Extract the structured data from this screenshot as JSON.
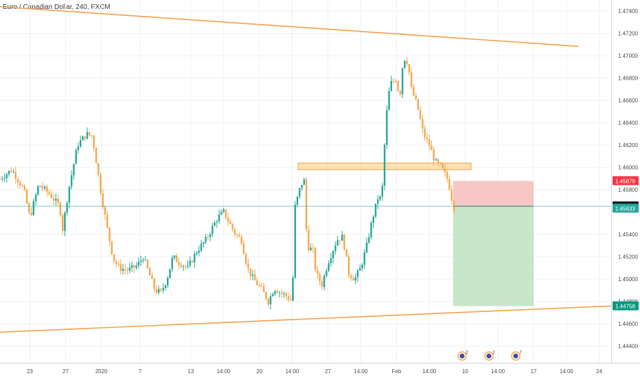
{
  "chart_data": {
    "type": "candlestick",
    "title": "Euro / Canadian Dollar, 240, FXCM",
    "ylim": [
      1.4425,
      1.475
    ],
    "y_ticks": [
      "1.47400",
      "1.47200",
      "1.47000",
      "1.46800",
      "1.46600",
      "1.46400",
      "1.46200",
      "1.46000",
      "1.45800",
      "1.45400",
      "1.45200",
      "1.45000",
      "1.44800",
      "1.44600",
      "1.44400"
    ],
    "x_ticks": [
      "23",
      "27",
      "2020",
      "7",
      "13",
      "14:00",
      "20",
      "14:00",
      "27",
      "14:00",
      "Feb",
      "14:00",
      "10",
      "14:00",
      "17",
      "14:00",
      "24"
    ],
    "x_domain": [
      0,
      205
    ],
    "x_tick_positions": [
      10,
      22,
      34,
      47,
      64,
      75,
      87,
      98,
      110,
      121,
      133,
      144,
      156,
      167,
      179,
      190,
      201
    ],
    "price_tags": [
      {
        "label": "1.45879",
        "value": 1.45879,
        "color": "#f23645"
      },
      {
        "label": "1.45653",
        "value": 1.45653,
        "color": "#131722"
      },
      {
        "label": "1.45633",
        "value": 1.45633,
        "color": "#26a69a"
      },
      {
        "label": "1.44758",
        "value": 1.44758,
        "color": "#089981"
      }
    ],
    "current_price_line": 1.45653,
    "trendlines": [
      {
        "x1": 0,
        "y1": 1.4744,
        "x2": 194,
        "y2": 1.47085,
        "color": "#f2a04a"
      },
      {
        "x1": 0,
        "y1": 1.44525,
        "x2": 205,
        "y2": 1.4476,
        "color": "#f2a04a"
      }
    ],
    "zones": [
      {
        "x1": 100,
        "x2": 158,
        "y1": 1.4598,
        "y2": 1.4604,
        "fill": "#f9d79a",
        "stroke": "#f2a04a"
      }
    ],
    "position": {
      "type": "short",
      "x1": 152,
      "x2": 179,
      "entry": 1.45653,
      "stop": 1.45879,
      "target": 1.44758,
      "loss_color": "#f7c6c6",
      "profit_color": "#c8e6c9"
    },
    "events": [
      {
        "x": 155,
        "label": "2"
      },
      {
        "x": 164,
        "label": "2"
      },
      {
        "x": 173,
        "label": "7"
      }
    ],
    "anchors": [
      [
        0,
        1.459
      ],
      [
        4,
        1.4598
      ],
      [
        8,
        1.458
      ],
      [
        10,
        1.4555
      ],
      [
        13,
        1.4585
      ],
      [
        17,
        1.4575
      ],
      [
        20,
        1.4565
      ],
      [
        21,
        1.4545
      ],
      [
        23,
        1.458
      ],
      [
        26,
        1.462
      ],
      [
        29,
        1.463
      ],
      [
        31,
        1.4628
      ],
      [
        34,
        1.4575
      ],
      [
        36,
        1.4545
      ],
      [
        38,
        1.4518
      ],
      [
        40,
        1.451
      ],
      [
        43,
        1.4508
      ],
      [
        46,
        1.4512
      ],
      [
        48,
        1.452
      ],
      [
        50,
        1.4505
      ],
      [
        52,
        1.449
      ],
      [
        54,
        1.4488
      ],
      [
        56,
        1.45
      ],
      [
        58,
        1.452
      ],
      [
        60,
        1.4515
      ],
      [
        63,
        1.451
      ],
      [
        66,
        1.4525
      ],
      [
        69,
        1.4535
      ],
      [
        71,
        1.4545
      ],
      [
        73,
        1.4555
      ],
      [
        75,
        1.456
      ],
      [
        77,
        1.455
      ],
      [
        79,
        1.454
      ],
      [
        81,
        1.4535
      ],
      [
        83,
        1.451
      ],
      [
        85,
        1.45
      ],
      [
        88,
        1.449
      ],
      [
        90,
        1.448
      ],
      [
        92,
        1.4492
      ],
      [
        94,
        1.4488
      ],
      [
        96,
        1.4485
      ],
      [
        98,
        1.448
      ],
      [
        99,
        1.4565
      ],
      [
        101,
        1.4585
      ],
      [
        102,
        1.4588
      ],
      [
        103,
        1.453
      ],
      [
        105,
        1.4525
      ],
      [
        106,
        1.4505
      ],
      [
        108,
        1.4495
      ],
      [
        110,
        1.4515
      ],
      [
        113,
        1.4535
      ],
      [
        115,
        1.4538
      ],
      [
        117,
        1.4505
      ],
      [
        119,
        1.45
      ],
      [
        121,
        1.451
      ],
      [
        123,
        1.453
      ],
      [
        125,
        1.4555
      ],
      [
        127,
        1.4575
      ],
      [
        128,
        1.457
      ],
      [
        129,
        1.462
      ],
      [
        130,
        1.466
      ],
      [
        131,
        1.4675
      ],
      [
        133,
        1.468
      ],
      [
        134,
        1.466
      ],
      [
        135,
        1.469
      ],
      [
        136,
        1.47
      ],
      [
        137,
        1.469
      ],
      [
        138,
        1.467
      ],
      [
        140,
        1.4655
      ],
      [
        142,
        1.463
      ],
      [
        144,
        1.462
      ],
      [
        146,
        1.4605
      ],
      [
        148,
        1.46
      ],
      [
        150,
        1.459
      ],
      [
        151,
        1.458
      ],
      [
        152,
        1.4565
      ],
      [
        152.5,
        1.45633
      ]
    ]
  }
}
